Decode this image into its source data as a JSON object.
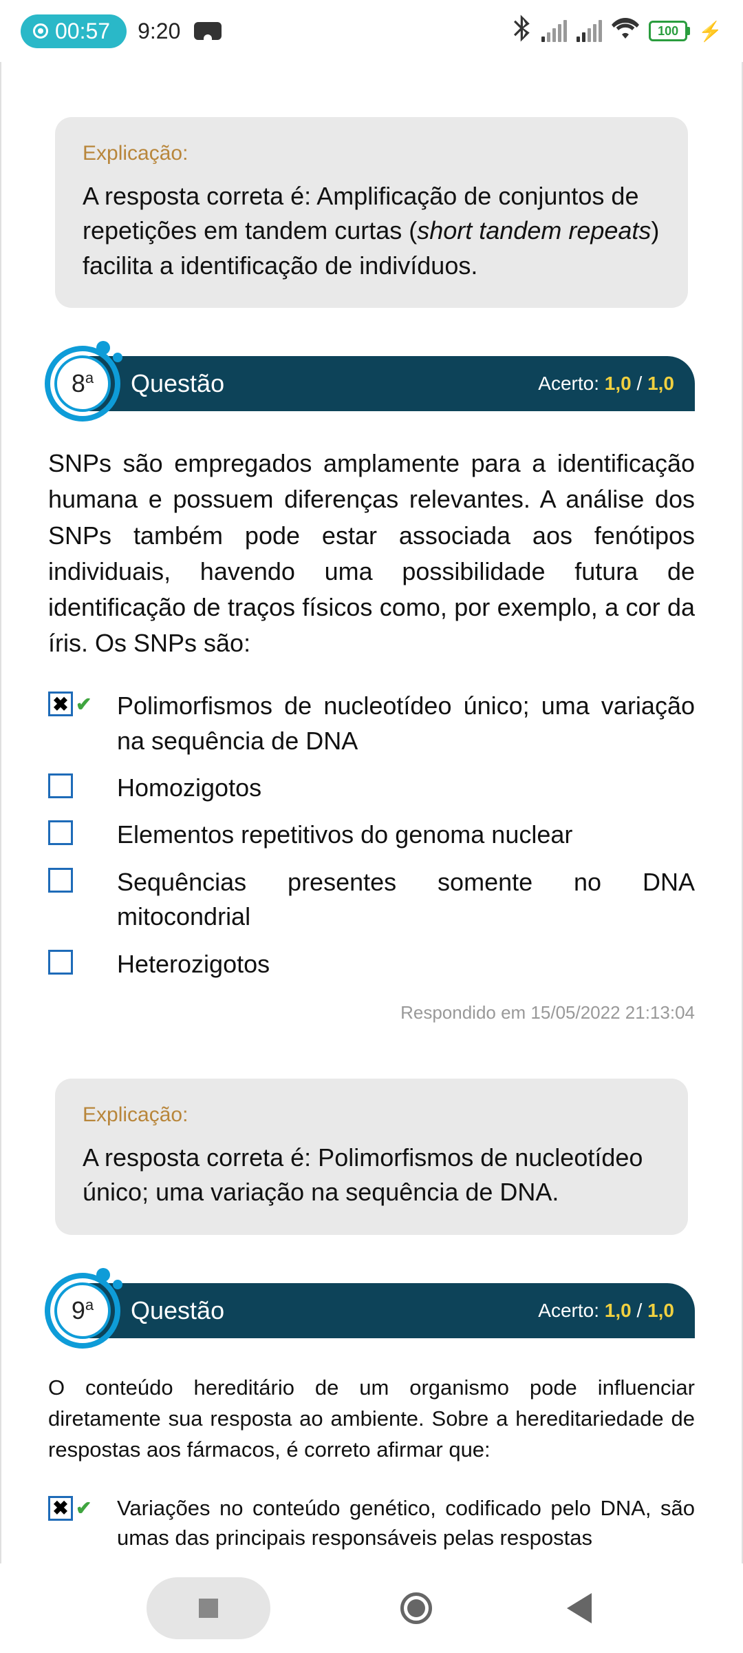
{
  "status": {
    "rec_time": "00:57",
    "clock": "9:20",
    "battery": "100"
  },
  "explain7": {
    "label": "Explicação:",
    "text_prefix": "A resposta correta é: Amplificação de conjuntos de repetições em tandem curtas (",
    "text_italic": "short tandem repeats",
    "text_suffix": ") facilita a identificação de indivíduos."
  },
  "q8": {
    "number": "8",
    "ord": "a",
    "title": "Questão",
    "score_label": "Acerto: ",
    "score_got": "1,0",
    "score_sep": "  / ",
    "score_max": "1,0",
    "text": "SNPs são empregados amplamente para a identificação humana e possuem diferenças relevantes. A análise dos SNPs também pode estar associada aos fenótipos individuais, havendo uma possibilidade futura de identificação de traços físicos como, por exemplo, a cor da íris. Os SNPs são:",
    "options": [
      {
        "checked": true,
        "correct": true,
        "text": "Polimorfismos de nucleotídeo único; uma variação na sequência de DNA"
      },
      {
        "checked": false,
        "correct": false,
        "text": "Homozigotos"
      },
      {
        "checked": false,
        "correct": false,
        "text": "Elementos repetitivos do genoma nuclear"
      },
      {
        "checked": false,
        "correct": false,
        "text": "Sequências presentes somente no DNA mitocondrial"
      },
      {
        "checked": false,
        "correct": false,
        "text": "Heterozigotos"
      }
    ],
    "answered": "Respondido em 15/05/2022 21:13:04"
  },
  "explain8": {
    "label": "Explicação:",
    "text": "A resposta correta é: Polimorfismos de nucleotídeo único; uma variação na sequência de DNA."
  },
  "q9": {
    "number": "9",
    "ord": "a",
    "title": "Questão",
    "score_label": "Acerto: ",
    "score_got": "1,0",
    "score_sep": "  / ",
    "score_max": "1,0",
    "text": "O conteúdo hereditário de um organismo pode influenciar diretamente sua resposta ao ambiente. Sobre a hereditariedade de respostas aos fármacos, é correto afirmar que:",
    "options": [
      {
        "checked": true,
        "correct": true,
        "text": "Variações no conteúdo genético, codificado pelo DNA, são umas das principais responsáveis pelas respostas"
      }
    ]
  },
  "colors": {
    "header_bg": "#0d4359",
    "badge_ring": "#0e9cd8",
    "score_highlight": "#f0d040",
    "explain_label": "#b8863b",
    "explain_bg": "#e9e9e9",
    "checkbox_border": "#1e6bb8",
    "correct_check": "#3fa53f"
  }
}
